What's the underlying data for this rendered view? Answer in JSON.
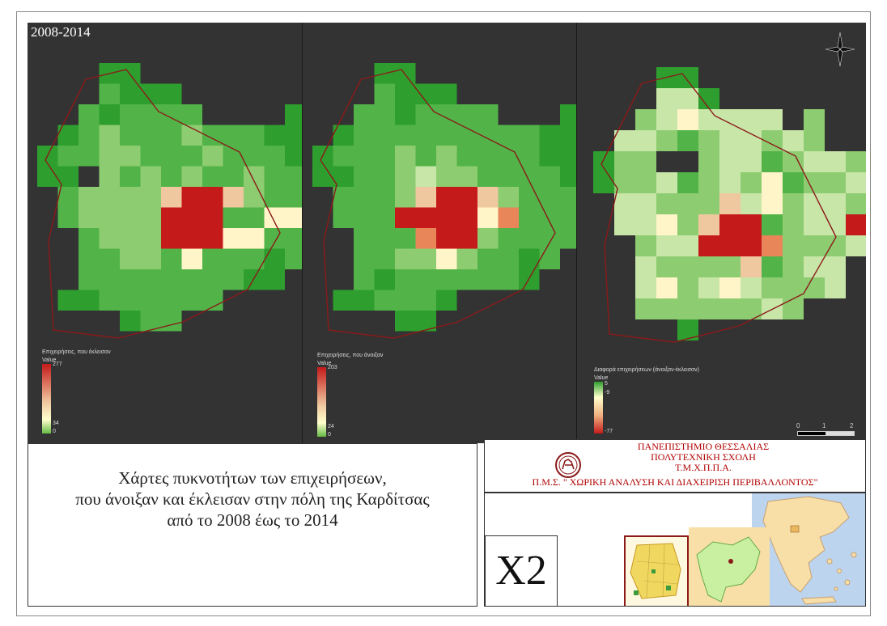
{
  "period_label": "2008-2014",
  "maps": [
    {
      "legend_title": "Επιχειρήσεις, που έκλεισαν",
      "legend_sub": "Value",
      "legend_max": "277",
      "legend_min": "34",
      "legend_zero": "0",
      "ramp_colors": [
        "#c41a1a",
        "#f0c8a0",
        "#ffffcc",
        "#66bb44"
      ]
    },
    {
      "legend_title": "Επιχειρήσεις, που άνοιξαν",
      "legend_sub": "Value",
      "legend_max": "203",
      "legend_min": "24",
      "legend_zero": "0",
      "ramp_colors": [
        "#c41a1a",
        "#f0c8a0",
        "#ffffcc",
        "#66bb44"
      ]
    },
    {
      "legend_title": "Διαφορά επιχειρήσεων (άνοιξαν-έκλεισαν)",
      "legend_sub": "Value",
      "legend_max": "5",
      "legend_mid": "-9",
      "legend_min": "-77",
      "ramp_colors": [
        "#2e9e2e",
        "#ffffcc",
        "#f0b080",
        "#c41a1a"
      ]
    }
  ],
  "scale": {
    "ticks": [
      "0",
      "1",
      "2"
    ]
  },
  "title_lines": [
    "Χάρτες πυκνοτήτων των επιχειρήσεων,",
    "που άνοιξαν και έκλεισαν στην πόλη της Καρδίτσας",
    "από το 2008 έως το 2014"
  ],
  "institution_lines": [
    "ΠΑΝΕΠΙΣΤΗΜΙΟ ΘΕΣΣΑΛΙΑΣ",
    "ΠΟΛΥΤΕΧΝΙΚΗ ΣΧΟΛΗ",
    "Τ.Μ.Χ.Π.Π.Α.",
    "Π.Μ.Σ. \" ΧΩΡΙΚΗ ΑΝΑΛΥΣΗ ΚΑΙ ΔΙΑΧΕΙΡΙΣΗ ΠΕΡΙΒΑΛΛΟΝΤΟΣ\""
  ],
  "map_code": "X2",
  "colors": {
    "background": "#333333",
    "dark_green": "#2e9e2e",
    "green": "#52b448",
    "light_green": "#8dcc70",
    "pale_green": "#c8e6a8",
    "cream": "#fff5c8",
    "peach": "#f0c8a0",
    "orange": "#e8865a",
    "red": "#c41a1a",
    "boundary": "#8b1a1a"
  }
}
